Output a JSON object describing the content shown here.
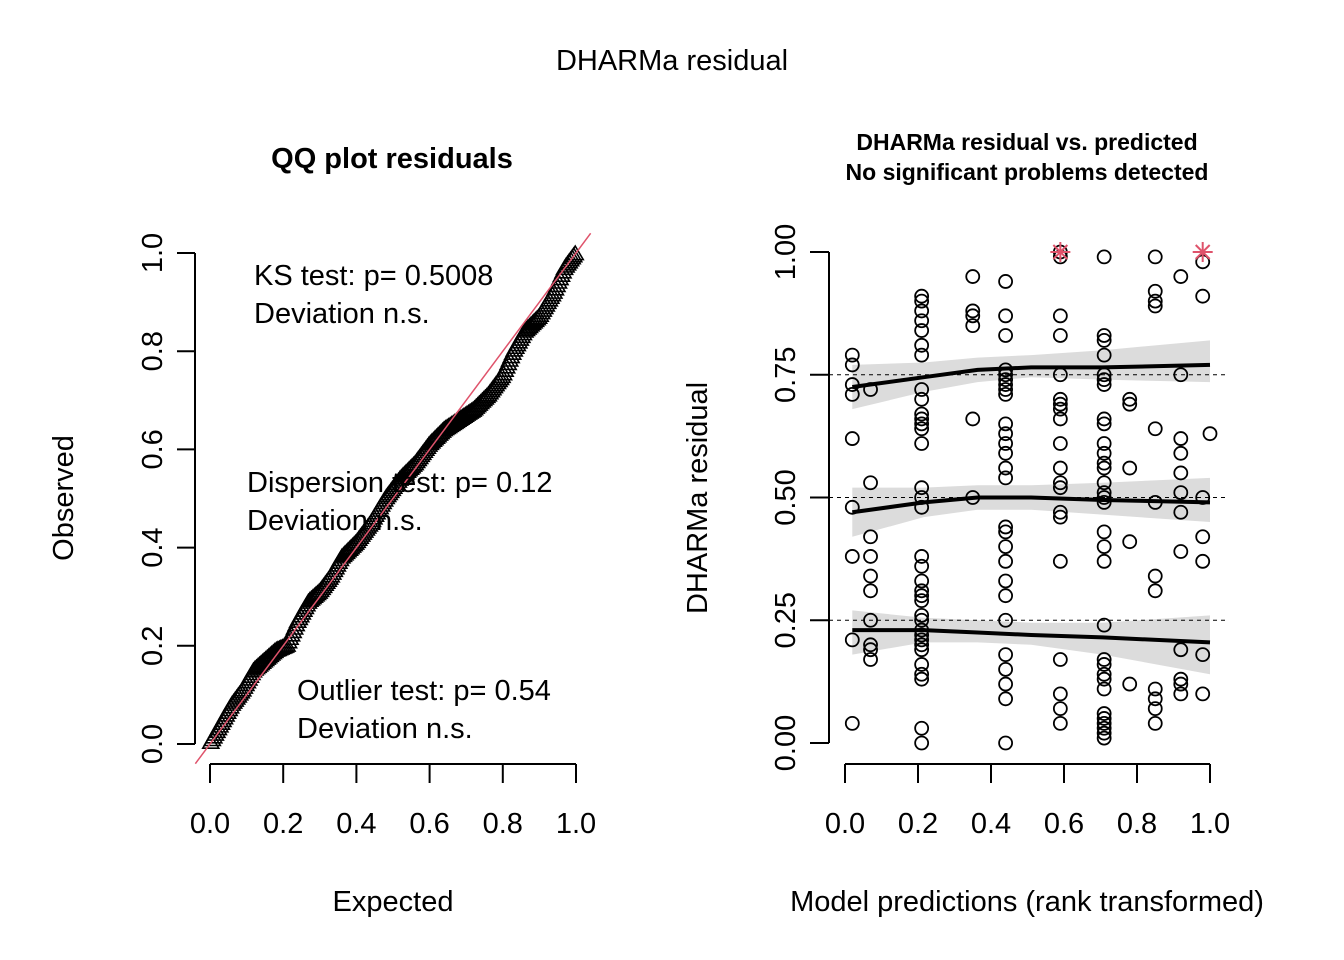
{
  "figure": {
    "outer_title": "DHARMa residual"
  },
  "chart_data": [
    {
      "type": "scatter",
      "title": "QQ plot residuals",
      "xlabel": "Expected",
      "ylabel": "Observed",
      "xlim": [
        0,
        1
      ],
      "ylim": [
        0,
        1
      ],
      "xticks": [
        "0.0",
        "0.2",
        "0.4",
        "0.6",
        "0.8",
        "1.0"
      ],
      "yticks": [
        "0.0",
        "0.2",
        "0.4",
        "0.6",
        "0.8",
        "1.0"
      ],
      "marker": "triangle",
      "reference_line": {
        "from": [
          0,
          0
        ],
        "to": [
          1,
          1
        ],
        "color": "#DF536B"
      },
      "qq_profile": [
        [
          0.0,
          0.0
        ],
        [
          0.03,
          0.04
        ],
        [
          0.06,
          0.08
        ],
        [
          0.09,
          0.11
        ],
        [
          0.12,
          0.15
        ],
        [
          0.15,
          0.17
        ],
        [
          0.18,
          0.19
        ],
        [
          0.21,
          0.2
        ],
        [
          0.24,
          0.25
        ],
        [
          0.27,
          0.29
        ],
        [
          0.3,
          0.31
        ],
        [
          0.33,
          0.34
        ],
        [
          0.36,
          0.38
        ],
        [
          0.4,
          0.41
        ],
        [
          0.44,
          0.45
        ],
        [
          0.48,
          0.5
        ],
        [
          0.52,
          0.54
        ],
        [
          0.56,
          0.57
        ],
        [
          0.6,
          0.61
        ],
        [
          0.64,
          0.64
        ],
        [
          0.68,
          0.66
        ],
        [
          0.72,
          0.68
        ],
        [
          0.76,
          0.71
        ],
        [
          0.8,
          0.75
        ],
        [
          0.83,
          0.8
        ],
        [
          0.86,
          0.84
        ],
        [
          0.9,
          0.87
        ],
        [
          0.94,
          0.92
        ],
        [
          0.97,
          0.97
        ],
        [
          1.0,
          1.0
        ]
      ],
      "annotations": [
        {
          "lines": [
            "KS test: p= 0.5008",
            "Deviation  n.s."
          ]
        },
        {
          "lines": [
            "Dispersion test: p= 0.12",
            "Deviation  n.s."
          ]
        },
        {
          "lines": [
            "Outlier test: p= 0.54",
            "Deviation  n.s."
          ]
        }
      ]
    },
    {
      "type": "scatter",
      "title": "DHARMa residual vs. predicted",
      "subtitle": "No significant problems detected",
      "xlabel": "Model predictions (rank transformed)",
      "ylabel": "DHARMa residual",
      "xlim": [
        0,
        1
      ],
      "ylim": [
        0,
        1
      ],
      "xticks": [
        "0.0",
        "0.2",
        "0.4",
        "0.6",
        "0.8",
        "1.0"
      ],
      "yticks": [
        "0.00",
        "0.25",
        "0.50",
        "0.75",
        "1.00"
      ],
      "reference_lines_y": [
        0.25,
        0.5,
        0.75
      ],
      "outlier_color": "#DF536B",
      "outliers": [
        [
          0.59,
          1.0
        ],
        [
          0.98,
          1.0
        ]
      ],
      "points": [
        [
          0.02,
          0.79
        ],
        [
          0.02,
          0.77
        ],
        [
          0.02,
          0.73
        ],
        [
          0.02,
          0.71
        ],
        [
          0.02,
          0.62
        ],
        [
          0.02,
          0.48
        ],
        [
          0.02,
          0.38
        ],
        [
          0.02,
          0.21
        ],
        [
          0.02,
          0.04
        ],
        [
          0.07,
          0.72
        ],
        [
          0.07,
          0.53
        ],
        [
          0.07,
          0.42
        ],
        [
          0.07,
          0.38
        ],
        [
          0.07,
          0.34
        ],
        [
          0.07,
          0.31
        ],
        [
          0.07,
          0.25
        ],
        [
          0.07,
          0.2
        ],
        [
          0.07,
          0.19
        ],
        [
          0.07,
          0.17
        ],
        [
          0.21,
          0.91
        ],
        [
          0.21,
          0.9
        ],
        [
          0.21,
          0.88
        ],
        [
          0.21,
          0.86
        ],
        [
          0.21,
          0.84
        ],
        [
          0.21,
          0.81
        ],
        [
          0.21,
          0.79
        ],
        [
          0.21,
          0.72
        ],
        [
          0.21,
          0.7
        ],
        [
          0.21,
          0.67
        ],
        [
          0.21,
          0.66
        ],
        [
          0.21,
          0.65
        ],
        [
          0.21,
          0.64
        ],
        [
          0.21,
          0.61
        ],
        [
          0.21,
          0.52
        ],
        [
          0.21,
          0.5
        ],
        [
          0.21,
          0.48
        ],
        [
          0.21,
          0.38
        ],
        [
          0.21,
          0.36
        ],
        [
          0.21,
          0.33
        ],
        [
          0.21,
          0.31
        ],
        [
          0.21,
          0.3
        ],
        [
          0.21,
          0.29
        ],
        [
          0.21,
          0.26
        ],
        [
          0.21,
          0.25
        ],
        [
          0.21,
          0.23
        ],
        [
          0.21,
          0.22
        ],
        [
          0.21,
          0.21
        ],
        [
          0.21,
          0.2
        ],
        [
          0.21,
          0.19
        ],
        [
          0.21,
          0.16
        ],
        [
          0.21,
          0.14
        ],
        [
          0.21,
          0.13
        ],
        [
          0.21,
          0.03
        ],
        [
          0.21,
          0.0
        ],
        [
          0.35,
          0.95
        ],
        [
          0.35,
          0.88
        ],
        [
          0.35,
          0.87
        ],
        [
          0.35,
          0.85
        ],
        [
          0.35,
          0.66
        ],
        [
          0.35,
          0.5
        ],
        [
          0.44,
          0.94
        ],
        [
          0.44,
          0.87
        ],
        [
          0.44,
          0.83
        ],
        [
          0.44,
          0.76
        ],
        [
          0.44,
          0.75
        ],
        [
          0.44,
          0.74
        ],
        [
          0.44,
          0.73
        ],
        [
          0.44,
          0.72
        ],
        [
          0.44,
          0.71
        ],
        [
          0.44,
          0.65
        ],
        [
          0.44,
          0.63
        ],
        [
          0.44,
          0.61
        ],
        [
          0.44,
          0.59
        ],
        [
          0.44,
          0.56
        ],
        [
          0.44,
          0.54
        ],
        [
          0.44,
          0.44
        ],
        [
          0.44,
          0.43
        ],
        [
          0.44,
          0.4
        ],
        [
          0.44,
          0.37
        ],
        [
          0.44,
          0.33
        ],
        [
          0.44,
          0.3
        ],
        [
          0.44,
          0.25
        ],
        [
          0.44,
          0.18
        ],
        [
          0.44,
          0.15
        ],
        [
          0.44,
          0.12
        ],
        [
          0.44,
          0.09
        ],
        [
          0.44,
          0.0
        ],
        [
          0.59,
          1.0
        ],
        [
          0.59,
          0.99
        ],
        [
          0.59,
          0.87
        ],
        [
          0.59,
          0.83
        ],
        [
          0.59,
          0.75
        ],
        [
          0.59,
          0.7
        ],
        [
          0.59,
          0.69
        ],
        [
          0.59,
          0.68
        ],
        [
          0.59,
          0.66
        ],
        [
          0.59,
          0.61
        ],
        [
          0.59,
          0.56
        ],
        [
          0.59,
          0.53
        ],
        [
          0.59,
          0.52
        ],
        [
          0.59,
          0.47
        ],
        [
          0.59,
          0.46
        ],
        [
          0.59,
          0.37
        ],
        [
          0.59,
          0.17
        ],
        [
          0.59,
          0.1
        ],
        [
          0.59,
          0.07
        ],
        [
          0.59,
          0.04
        ],
        [
          0.71,
          0.99
        ],
        [
          0.71,
          0.83
        ],
        [
          0.71,
          0.82
        ],
        [
          0.71,
          0.79
        ],
        [
          0.71,
          0.75
        ],
        [
          0.71,
          0.74
        ],
        [
          0.71,
          0.73
        ],
        [
          0.71,
          0.66
        ],
        [
          0.71,
          0.65
        ],
        [
          0.71,
          0.61
        ],
        [
          0.71,
          0.59
        ],
        [
          0.71,
          0.57
        ],
        [
          0.71,
          0.56
        ],
        [
          0.71,
          0.53
        ],
        [
          0.71,
          0.51
        ],
        [
          0.71,
          0.5
        ],
        [
          0.71,
          0.49
        ],
        [
          0.71,
          0.43
        ],
        [
          0.71,
          0.4
        ],
        [
          0.71,
          0.37
        ],
        [
          0.71,
          0.24
        ],
        [
          0.71,
          0.17
        ],
        [
          0.71,
          0.16
        ],
        [
          0.71,
          0.14
        ],
        [
          0.71,
          0.13
        ],
        [
          0.71,
          0.11
        ],
        [
          0.71,
          0.06
        ],
        [
          0.71,
          0.05
        ],
        [
          0.71,
          0.04
        ],
        [
          0.71,
          0.03
        ],
        [
          0.71,
          0.02
        ],
        [
          0.71,
          0.01
        ],
        [
          0.78,
          0.7
        ],
        [
          0.78,
          0.69
        ],
        [
          0.78,
          0.56
        ],
        [
          0.78,
          0.41
        ],
        [
          0.78,
          0.12
        ],
        [
          0.85,
          0.99
        ],
        [
          0.85,
          0.92
        ],
        [
          0.85,
          0.9
        ],
        [
          0.85,
          0.89
        ],
        [
          0.85,
          0.64
        ],
        [
          0.85,
          0.49
        ],
        [
          0.85,
          0.34
        ],
        [
          0.85,
          0.31
        ],
        [
          0.85,
          0.11
        ],
        [
          0.85,
          0.09
        ],
        [
          0.85,
          0.07
        ],
        [
          0.85,
          0.04
        ],
        [
          0.92,
          0.95
        ],
        [
          0.92,
          0.75
        ],
        [
          0.92,
          0.62
        ],
        [
          0.92,
          0.59
        ],
        [
          0.92,
          0.55
        ],
        [
          0.92,
          0.51
        ],
        [
          0.92,
          0.47
        ],
        [
          0.92,
          0.39
        ],
        [
          0.92,
          0.19
        ],
        [
          0.92,
          0.13
        ],
        [
          0.92,
          0.12
        ],
        [
          0.92,
          0.1
        ],
        [
          0.98,
          0.98
        ],
        [
          0.98,
          0.91
        ],
        [
          0.98,
          0.5
        ],
        [
          0.98,
          0.42
        ],
        [
          0.98,
          0.37
        ],
        [
          0.98,
          0.18
        ],
        [
          0.98,
          0.1
        ],
        [
          1.0,
          0.63
        ]
      ],
      "quantile_curves": [
        {
          "q": 0.75,
          "x": [
            0.0,
            0.2,
            0.35,
            0.5,
            0.7,
            1.0
          ],
          "y": [
            0.725,
            0.745,
            0.76,
            0.765,
            0.765,
            0.77
          ],
          "band_lower": [
            0.68,
            0.715,
            0.735,
            0.745,
            0.74,
            0.735
          ],
          "band_upper": [
            0.77,
            0.775,
            0.785,
            0.79,
            0.8,
            0.82
          ]
        },
        {
          "q": 0.5,
          "x": [
            0.0,
            0.2,
            0.35,
            0.5,
            0.7,
            1.0
          ],
          "y": [
            0.47,
            0.49,
            0.5,
            0.5,
            0.495,
            0.49
          ],
          "band_lower": [
            0.42,
            0.46,
            0.475,
            0.475,
            0.465,
            0.45
          ],
          "band_upper": [
            0.52,
            0.52,
            0.525,
            0.525,
            0.53,
            0.54
          ]
        },
        {
          "q": 0.25,
          "x": [
            0.0,
            0.2,
            0.35,
            0.5,
            0.7,
            1.0
          ],
          "y": [
            0.23,
            0.23,
            0.225,
            0.22,
            0.215,
            0.205
          ],
          "band_lower": [
            0.18,
            0.205,
            0.205,
            0.2,
            0.18,
            0.14
          ],
          "band_upper": [
            0.27,
            0.255,
            0.25,
            0.245,
            0.245,
            0.26
          ]
        }
      ]
    }
  ]
}
